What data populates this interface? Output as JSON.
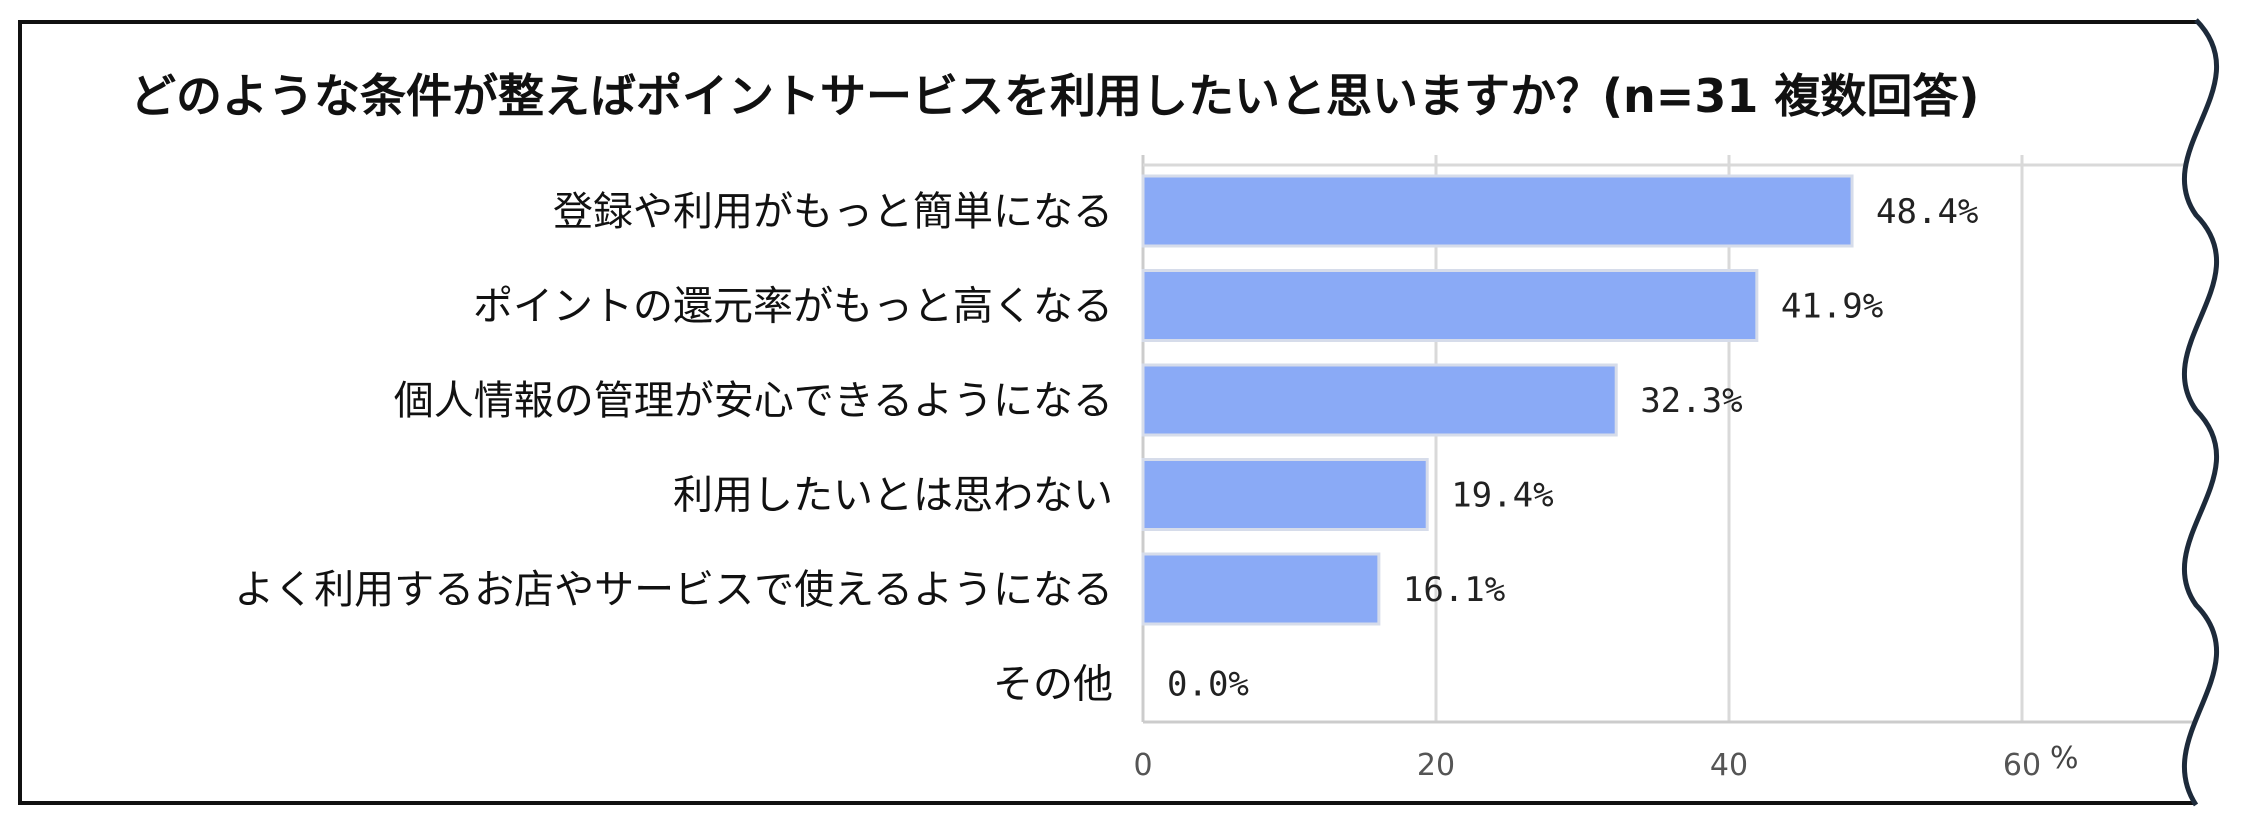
{
  "chart_data": {
    "type": "bar",
    "orientation": "horizontal",
    "title": "どのような条件が整えばポイントサービスを利用したいと思いますか？(n=31 複数回答)",
    "categories": [
      "登録や利用がもっと簡単になる",
      "ポイントの還元率がもっと高くなる",
      "個人情報の管理が安心できるようになる",
      "利用したいとは思わない",
      "よく利用するお店やサービスで使えるようになる",
      "その他"
    ],
    "values": [
      48.4,
      41.9,
      32.3,
      19.4,
      16.1,
      0.0
    ],
    "data_labels": [
      "48.4%",
      "41.9%",
      "32.3%",
      "19.4%",
      "16.1%",
      "0.0%"
    ],
    "x_ticks": [
      0,
      20,
      40,
      60
    ],
    "x_tick_labels": [
      "0",
      "20",
      "40",
      "60"
    ],
    "x_unit": "%",
    "xlim": [
      0,
      80
    ],
    "grid": true,
    "bar_color": "#8aaaf6",
    "legend": "none"
  }
}
